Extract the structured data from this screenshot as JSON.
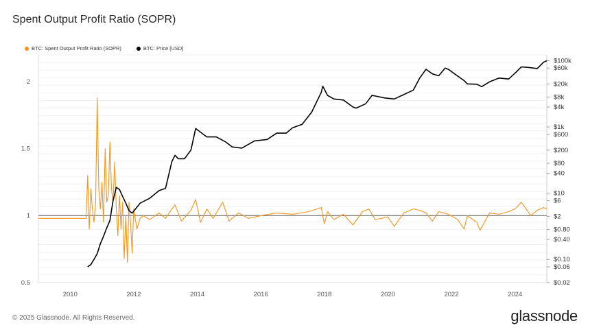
{
  "title": "Spent Output Profit Ratio (SOPR)",
  "footer": "© 2025 Glassnode. All Rights Reserved.",
  "brand": "glassnode",
  "legend": [
    {
      "label": "BTC: Spent Output Profit Ratio (SOPR)",
      "color": "#f7931a"
    },
    {
      "label": "BTC: Price [USD]",
      "color": "#000000"
    }
  ],
  "chart_data": {
    "type": "line",
    "xlim": [
      2009.0,
      2025.0
    ],
    "x_ticks": [
      "2010",
      "2012",
      "2014",
      "2016",
      "2018",
      "2020",
      "2022",
      "2024"
    ],
    "y_left": {
      "ylim": [
        0.5,
        2.2
      ],
      "ticks": [
        "0.5",
        "1",
        "1.5",
        "2"
      ]
    },
    "y_right": {
      "scale": "log",
      "ylim": [
        0.02,
        150000
      ],
      "ticks": [
        "$100k",
        "$60k",
        "$20k",
        "$8k",
        "$4k",
        "$1k",
        "$600",
        "$200",
        "$80",
        "$40",
        "$10",
        "$6",
        "$2",
        "$0.80",
        "$0.40",
        "$0.10",
        "$0.06",
        "$0.02"
      ]
    },
    "grid": true,
    "series": [
      {
        "name": "BTC: Spent Output Profit Ratio (SOPR)",
        "axis": "left",
        "color": "#f7931a",
        "x": [
          2009.0,
          2010.5,
          2010.55,
          2010.6,
          2010.65,
          2010.7,
          2010.75,
          2010.8,
          2010.85,
          2010.9,
          2010.95,
          2011.0,
          2011.05,
          2011.1,
          2011.15,
          2011.2,
          2011.25,
          2011.3,
          2011.35,
          2011.4,
          2011.45,
          2011.5,
          2011.55,
          2011.6,
          2011.65,
          2011.7,
          2011.75,
          2011.8,
          2011.85,
          2011.9,
          2011.95,
          2012.0,
          2012.1,
          2012.2,
          2012.3,
          2012.5,
          2012.8,
          2013.0,
          2013.2,
          2013.3,
          2013.5,
          2013.8,
          2013.95,
          2014.1,
          2014.3,
          2014.5,
          2014.8,
          2015.0,
          2015.3,
          2015.6,
          2016.0,
          2016.5,
          2017.0,
          2017.5,
          2017.9,
          2018.0,
          2018.1,
          2018.3,
          2018.6,
          2018.9,
          2019.2,
          2019.4,
          2019.6,
          2020.0,
          2020.2,
          2020.5,
          2020.8,
          2021.0,
          2021.2,
          2021.4,
          2021.6,
          2021.9,
          2022.2,
          2022.4,
          2022.5,
          2022.8,
          2022.9,
          2023.2,
          2023.5,
          2023.8,
          2024.0,
          2024.2,
          2024.5,
          2024.7,
          2024.9,
          2025.0
        ],
        "y": [
          0.98,
          0.98,
          1.3,
          0.9,
          1.2,
          1.05,
          0.95,
          1.1,
          1.88,
          1.2,
          1.05,
          1.25,
          0.95,
          1.5,
          1.1,
          1.15,
          1.55,
          1.2,
          1.1,
          1.4,
          1.05,
          0.85,
          1.15,
          0.9,
          1.1,
          0.68,
          1.0,
          0.65,
          1.1,
          0.95,
          0.72,
          1.05,
          0.9,
          0.98,
          1.0,
          0.97,
          1.02,
          0.98,
          1.05,
          1.08,
          0.96,
          1.04,
          1.12,
          0.95,
          1.05,
          0.98,
          1.1,
          0.96,
          1.02,
          0.98,
          1.0,
          1.02,
          1.01,
          1.03,
          1.06,
          0.94,
          1.03,
          0.97,
          1.01,
          0.93,
          1.03,
          1.05,
          0.97,
          0.99,
          0.92,
          1.02,
          1.05,
          1.04,
          1.02,
          0.96,
          1.03,
          1.01,
          0.97,
          0.9,
          1.0,
          0.95,
          0.89,
          1.02,
          1.01,
          1.03,
          1.05,
          1.1,
          1.0,
          1.04,
          1.06,
          1.05
        ]
      },
      {
        "name": "BTC: Price [USD]",
        "axis": "right",
        "color": "#000000",
        "x": [
          2010.55,
          2010.65,
          2010.75,
          2010.85,
          2010.95,
          2011.05,
          2011.15,
          2011.25,
          2011.35,
          2011.45,
          2011.55,
          2011.65,
          2011.75,
          2011.85,
          2011.95,
          2012.2,
          2012.5,
          2012.8,
          2013.0,
          2013.2,
          2013.3,
          2013.4,
          2013.6,
          2013.8,
          2013.95,
          2014.1,
          2014.3,
          2014.6,
          2014.9,
          2015.1,
          2015.4,
          2015.8,
          2016.2,
          2016.5,
          2016.8,
          2017.0,
          2017.3,
          2017.6,
          2017.9,
          2017.95,
          2018.1,
          2018.3,
          2018.6,
          2018.9,
          2019.0,
          2019.3,
          2019.5,
          2019.9,
          2020.2,
          2020.5,
          2020.8,
          2021.0,
          2021.2,
          2021.4,
          2021.6,
          2021.8,
          2021.9,
          2022.1,
          2022.4,
          2022.5,
          2022.8,
          2022.95,
          2023.2,
          2023.5,
          2023.8,
          2024.0,
          2024.2,
          2024.4,
          2024.7,
          2024.9,
          2025.0
        ],
        "y": [
          0.06,
          0.07,
          0.1,
          0.15,
          0.3,
          0.5,
          0.9,
          1.5,
          6,
          15,
          13,
          8,
          5,
          3,
          2.5,
          5,
          7,
          12,
          14,
          90,
          140,
          110,
          110,
          200,
          900,
          700,
          500,
          500,
          350,
          250,
          230,
          380,
          420,
          650,
          650,
          950,
          1200,
          2800,
          11000,
          17000,
          9000,
          7000,
          6500,
          4000,
          3700,
          5000,
          9000,
          7500,
          7000,
          9500,
          13000,
          30000,
          55000,
          40000,
          35000,
          60000,
          55000,
          40000,
          25000,
          20000,
          19500,
          16500,
          23000,
          30000,
          28000,
          42000,
          65000,
          63000,
          58000,
          90000,
          100000
        ]
      }
    ]
  }
}
